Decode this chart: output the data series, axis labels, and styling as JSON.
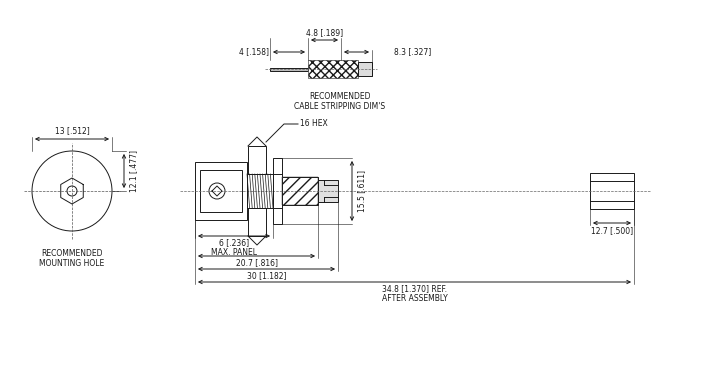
{
  "bg_color": "#ffffff",
  "line_color": "#1a1a1a",
  "text_color": "#1a1a1a",
  "annotations": {
    "cable_strip_label": "RECOMMENDED\nCABLE STRIPPING DIM'S",
    "mount_hole_label": "RECOMMENDED\nMOUNTING HOLE",
    "hex_label": "16 HEX",
    "dim_4": "4 [.158]",
    "dim_4_8": "4.8 [.189]",
    "dim_8_3": "8.3 [.327]",
    "dim_13": "13 [.512]",
    "dim_12_1": "12.1 [.477]",
    "dim_15_5": "15.5 [.611]",
    "dim_12_7": "12.7 [.500]",
    "dim_6": "6 [.236]\nMAX. PANEL",
    "dim_20_7": "20.7 [.816]",
    "dim_30": "30 [1.182]",
    "dim_34_8": "34.8 [1.370] REF.\nAFTER ASSEMBLY"
  }
}
